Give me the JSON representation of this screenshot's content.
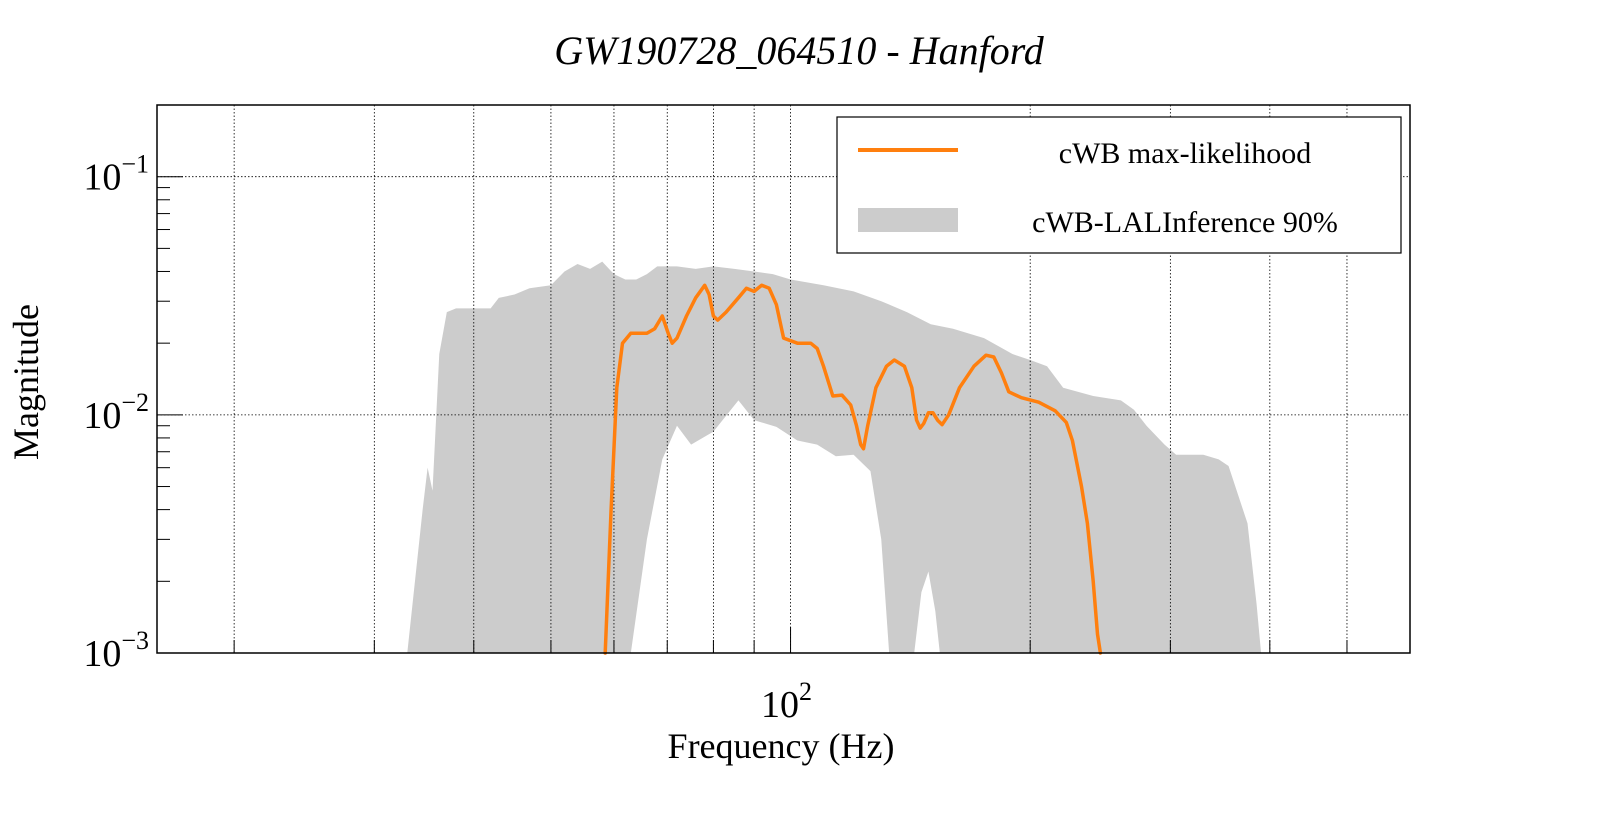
{
  "chart_data": {
    "type": "line",
    "title": "GW190728_064510 - Hanford",
    "xlabel": "Frequency (Hz)",
    "ylabel": "Magnitude",
    "x_scale": "log",
    "y_scale": "log",
    "xlim": [
      16,
      600
    ],
    "ylim": [
      0.001,
      0.2
    ],
    "grid": true,
    "legend_position": "top-right",
    "x_major_ticks": [
      {
        "value": 100,
        "base": "10",
        "exp": "2"
      }
    ],
    "y_major_ticks": [
      {
        "value": 0.001,
        "base": "10",
        "exp": "−3"
      },
      {
        "value": 0.01,
        "base": "10",
        "exp": "−2"
      },
      {
        "value": 0.1,
        "base": "10",
        "exp": "−1"
      }
    ],
    "series": [
      {
        "name": "cWB max-likelihood",
        "kind": "line",
        "color": "#ff7f0e",
        "points": [
          [
            58.5,
            0.001
          ],
          [
            59.5,
            0.004
          ],
          [
            60.5,
            0.013
          ],
          [
            61.5,
            0.02
          ],
          [
            63,
            0.022
          ],
          [
            66,
            0.022
          ],
          [
            67.5,
            0.023
          ],
          [
            69,
            0.026
          ],
          [
            70.2,
            0.022
          ],
          [
            71,
            0.02
          ],
          [
            72,
            0.021
          ],
          [
            74,
            0.026
          ],
          [
            76,
            0.031
          ],
          [
            78,
            0.035
          ],
          [
            79,
            0.032
          ],
          [
            80,
            0.026
          ],
          [
            81,
            0.025
          ],
          [
            83,
            0.027
          ],
          [
            86,
            0.031
          ],
          [
            88,
            0.034
          ],
          [
            90,
            0.033
          ],
          [
            92,
            0.035
          ],
          [
            94,
            0.034
          ],
          [
            96,
            0.029
          ],
          [
            98,
            0.021
          ],
          [
            102,
            0.02
          ],
          [
            106,
            0.02
          ],
          [
            108,
            0.019
          ],
          [
            110,
            0.016
          ],
          [
            113,
            0.012
          ],
          [
            116,
            0.0121
          ],
          [
            119,
            0.011
          ],
          [
            121,
            0.009
          ],
          [
            122.5,
            0.0075
          ],
          [
            123.5,
            0.0072
          ],
          [
            125,
            0.009
          ],
          [
            128,
            0.013
          ],
          [
            132,
            0.016
          ],
          [
            135,
            0.017
          ],
          [
            139,
            0.016
          ],
          [
            142,
            0.013
          ],
          [
            144,
            0.0095
          ],
          [
            145.5,
            0.0088
          ],
          [
            147,
            0.0092
          ],
          [
            149,
            0.0102
          ],
          [
            151,
            0.0102
          ],
          [
            153,
            0.0095
          ],
          [
            155,
            0.0091
          ],
          [
            158,
            0.01
          ],
          [
            163,
            0.013
          ],
          [
            170,
            0.016
          ],
          [
            176,
            0.0178
          ],
          [
            180,
            0.0175
          ],
          [
            184,
            0.015
          ],
          [
            188,
            0.0125
          ],
          [
            195,
            0.0118
          ],
          [
            205,
            0.0113
          ],
          [
            215,
            0.0104
          ],
          [
            222,
            0.0093
          ],
          [
            226,
            0.0078
          ],
          [
            232,
            0.005
          ],
          [
            236,
            0.0035
          ],
          [
            240,
            0.002
          ],
          [
            243,
            0.0012
          ],
          [
            245,
            0.001
          ]
        ]
      },
      {
        "name": "cWB-LALInference 90%",
        "kind": "band",
        "color": "#cccccc",
        "upper": [
          [
            33,
            0.001
          ],
          [
            34.5,
            0.004
          ],
          [
            35,
            0.006
          ],
          [
            35.5,
            0.0048
          ],
          [
            36.2,
            0.018
          ],
          [
            37,
            0.027
          ],
          [
            38,
            0.028
          ],
          [
            40,
            0.028
          ],
          [
            42,
            0.028
          ],
          [
            43,
            0.031
          ],
          [
            45,
            0.032
          ],
          [
            47,
            0.034
          ],
          [
            50,
            0.035
          ],
          [
            52,
            0.04
          ],
          [
            54,
            0.043
          ],
          [
            56,
            0.041
          ],
          [
            58,
            0.044
          ],
          [
            60,
            0.039
          ],
          [
            62,
            0.037
          ],
          [
            64,
            0.037
          ],
          [
            66,
            0.039
          ],
          [
            68,
            0.042
          ],
          [
            72,
            0.042
          ],
          [
            76,
            0.041
          ],
          [
            80,
            0.042
          ],
          [
            85,
            0.041
          ],
          [
            90,
            0.04
          ],
          [
            95,
            0.039
          ],
          [
            100,
            0.037
          ],
          [
            110,
            0.035
          ],
          [
            120,
            0.033
          ],
          [
            130,
            0.03
          ],
          [
            140,
            0.027
          ],
          [
            150,
            0.024
          ],
          [
            160,
            0.023
          ],
          [
            175,
            0.021
          ],
          [
            190,
            0.018
          ],
          [
            200,
            0.017
          ],
          [
            210,
            0.016
          ],
          [
            220,
            0.013
          ],
          [
            240,
            0.012
          ],
          [
            260,
            0.0115
          ],
          [
            270,
            0.0105
          ],
          [
            280,
            0.009
          ],
          [
            295,
            0.0075
          ],
          [
            305,
            0.0068
          ],
          [
            330,
            0.0068
          ],
          [
            345,
            0.0065
          ],
          [
            355,
            0.0061
          ],
          [
            375,
            0.0035
          ],
          [
            385,
            0.0016
          ],
          [
            390,
            0.001
          ]
        ],
        "lower": [
          [
            33,
            0.001
          ],
          [
            390,
            0.001
          ]
        ],
        "inner_gaps": [
          [
            [
              63,
              0.001
            ],
            [
              66,
              0.003
            ],
            [
              69,
              0.0065
            ],
            [
              72,
              0.009
            ],
            [
              75,
              0.0075
            ],
            [
              80,
              0.0085
            ],
            [
              86,
              0.0115
            ],
            [
              90,
              0.0095
            ],
            [
              96,
              0.0089
            ],
            [
              102,
              0.0078
            ],
            [
              108,
              0.0075
            ],
            [
              114,
              0.0067
            ],
            [
              120,
              0.0068
            ],
            [
              126,
              0.0058
            ],
            [
              130,
              0.003
            ],
            [
              133,
              0.001
            ]
          ],
          [
            [
              143,
              0.001
            ],
            [
              146,
              0.0018
            ],
            [
              149,
              0.0022
            ],
            [
              152,
              0.0015
            ],
            [
              154,
              0.001
            ]
          ]
        ]
      }
    ],
    "legend": [
      {
        "label": "cWB max-likelihood",
        "kind": "line",
        "color": "#ff7f0e"
      },
      {
        "label": "cWB-LALInference 90%",
        "kind": "band",
        "color": "#cccccc"
      }
    ]
  }
}
